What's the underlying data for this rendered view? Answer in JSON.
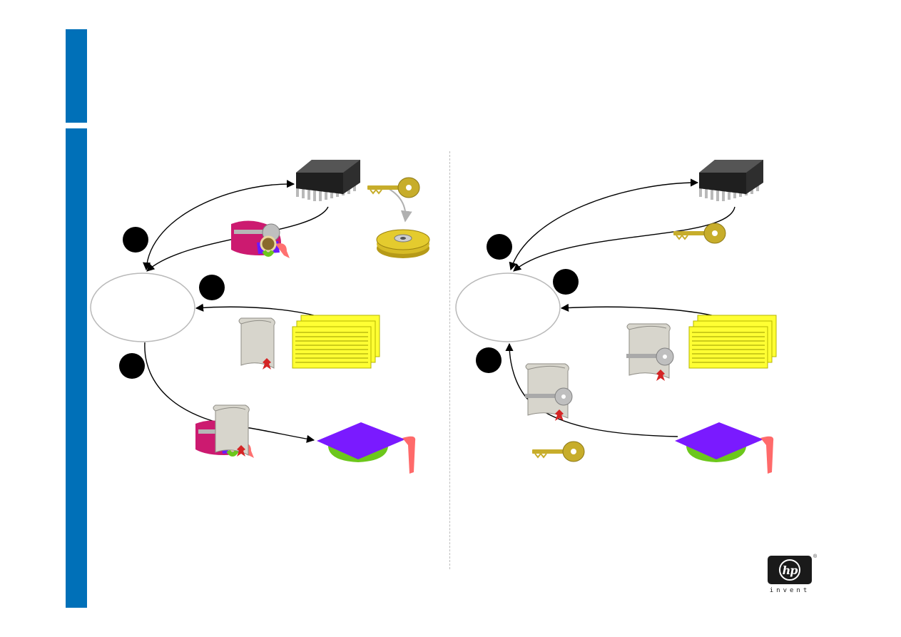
{
  "slide": {
    "accent_color": "#0070b8",
    "divider_color": "#bdbdbd"
  },
  "left_panel": {
    "steps": [
      "",
      "",
      ""
    ],
    "icons": [
      "chip-icon",
      "key-icon",
      "disk-icon",
      "wrapped-key-icon",
      "certificate-icon",
      "document-stack-icon",
      "credentials-bundle-icon",
      "graduation-cap-icon"
    ]
  },
  "right_panel": {
    "steps": [
      "",
      "",
      ""
    ],
    "icons": [
      "chip-icon",
      "key-icon",
      "certificate-icon",
      "document-stack-icon",
      "certificate-icon",
      "key-icon",
      "graduation-cap-icon"
    ]
  },
  "logo": {
    "text": "hp",
    "tagline": "invent",
    "registered": "®"
  }
}
